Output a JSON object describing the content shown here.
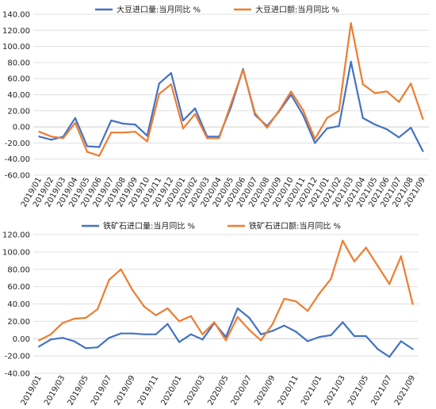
{
  "colors": {
    "series1": "#4472C4",
    "series2": "#ED7D31",
    "grid": "#e0e0e0",
    "text": "#222222"
  },
  "chart_data": [
    {
      "type": "line",
      "title": "",
      "xlabel": "",
      "ylabel": "",
      "ylim": [
        -60,
        140
      ],
      "yticks": [
        "-60.00",
        "-40.00",
        "-20.00",
        "0.00",
        "20.00",
        "40.00",
        "60.00",
        "80.00",
        "100.00",
        "120.00",
        "140.00"
      ],
      "grid": true,
      "legend_position": "top",
      "x": [
        "2019/01",
        "2019/02",
        "2019/03",
        "2019/04",
        "2019/05",
        "2019/06",
        "2019/07",
        "2019/08",
        "2019/09",
        "2019/10",
        "2019/11",
        "2019/12",
        "2020/01",
        "2020/02",
        "2020/03",
        "2020/04",
        "2020/05",
        "2020/06",
        "2020/07",
        "2020/08",
        "2020/09",
        "2020/10",
        "2020/11",
        "2020/12",
        "2021/01",
        "2021/02",
        "2021/03",
        "2021/04",
        "2021/05",
        "2021/06",
        "2021/07",
        "2021/08",
        "2021/09"
      ],
      "xticklabels": [
        "2019/01",
        "2019/02",
        "2019/03",
        "2019/04",
        "2019/05",
        "2019/06",
        "2019/07",
        "2019/08",
        "2019/09",
        "2019/10",
        "2019/11",
        "2019/12",
        "2020/01",
        "2020/02",
        "2020/03",
        "2020/04",
        "2020/05",
        "2020/06",
        "2020/07",
        "2020/08",
        "2020/09",
        "2020/10",
        "2020/11",
        "2020/12",
        "2021/01",
        "2021/02",
        "2021/03",
        "2021/04",
        "2021/05",
        "2021/06",
        "2021/07",
        "2021/08",
        "2021/09"
      ],
      "series": [
        {
          "name": "大豆进口量:当月同比 %",
          "color": "#4472C4",
          "values": [
            -12,
            -16,
            -12,
            11,
            -24,
            -25,
            8,
            4,
            3,
            -11,
            54,
            67,
            8,
            23,
            -12,
            -12,
            25,
            72,
            15,
            1,
            19,
            40,
            15,
            -20,
            -2,
            1,
            81,
            11,
            3,
            -3,
            -13,
            -1,
            -30
          ]
        },
        {
          "name": "大豆进口额:当月同比 %",
          "color": "#ED7D31",
          "values": [
            -6,
            -12,
            -14,
            5,
            -31,
            -36,
            -7,
            -7,
            -6,
            -18,
            41,
            53,
            -2,
            16,
            -14,
            -14,
            29,
            71,
            17,
            -1,
            20,
            44,
            21,
            -15,
            11,
            20,
            129,
            53,
            42,
            44,
            31,
            54,
            10
          ]
        }
      ]
    },
    {
      "type": "line",
      "title": "",
      "xlabel": "",
      "ylabel": "",
      "ylim": [
        -40,
        120
      ],
      "yticks": [
        "-40.00",
        "-20.00",
        "0.00",
        "20.00",
        "40.00",
        "60.00",
        "80.00",
        "100.00",
        "120.00"
      ],
      "grid": true,
      "legend_position": "top",
      "x": [
        "2019/01",
        "2019/02",
        "2019/03",
        "2019/04",
        "2019/05",
        "2019/06",
        "2019/07",
        "2019/08",
        "2019/09",
        "2019/10",
        "2019/11",
        "2019/12",
        "2020/01",
        "2020/02",
        "2020/03",
        "2020/04",
        "2020/05",
        "2020/06",
        "2020/07",
        "2020/08",
        "2020/09",
        "2020/10",
        "2020/11",
        "2020/12",
        "2021/01",
        "2021/02",
        "2021/03",
        "2021/04",
        "2021/05",
        "2021/06",
        "2021/07",
        "2021/08",
        "2021/09"
      ],
      "xticklabels": [
        "2019/01",
        "2019/03",
        "2019/05",
        "2019/07",
        "2019/09",
        "2019/11",
        "2020/01",
        "2020/03",
        "2020/05",
        "2020/07",
        "2020/09",
        "2020/11",
        "2021/01",
        "2021/03",
        "2021/05",
        "2021/07",
        "2021/09"
      ],
      "series": [
        {
          "name": "铁矿石进口量:当月同比 %",
          "color": "#4472C4",
          "values": [
            -9,
            -1,
            1,
            -3,
            -11,
            -10,
            1,
            6,
            6,
            5,
            5,
            17,
            -4,
            5,
            -1,
            18,
            2,
            35,
            24,
            5,
            9,
            15,
            8,
            -3,
            2,
            4,
            19,
            3,
            3,
            -12,
            -21,
            -3,
            -12
          ]
        },
        {
          "name": "铁矿石进口额:当月同比 %",
          "color": "#ED7D31",
          "values": [
            -2,
            5,
            18,
            23,
            24,
            34,
            68,
            80,
            56,
            37,
            27,
            35,
            20,
            26,
            5,
            19,
            -2,
            25,
            10,
            -2,
            17,
            46,
            43,
            32,
            52,
            69,
            113,
            89,
            105,
            84,
            63,
            95,
            40
          ]
        }
      ]
    }
  ]
}
